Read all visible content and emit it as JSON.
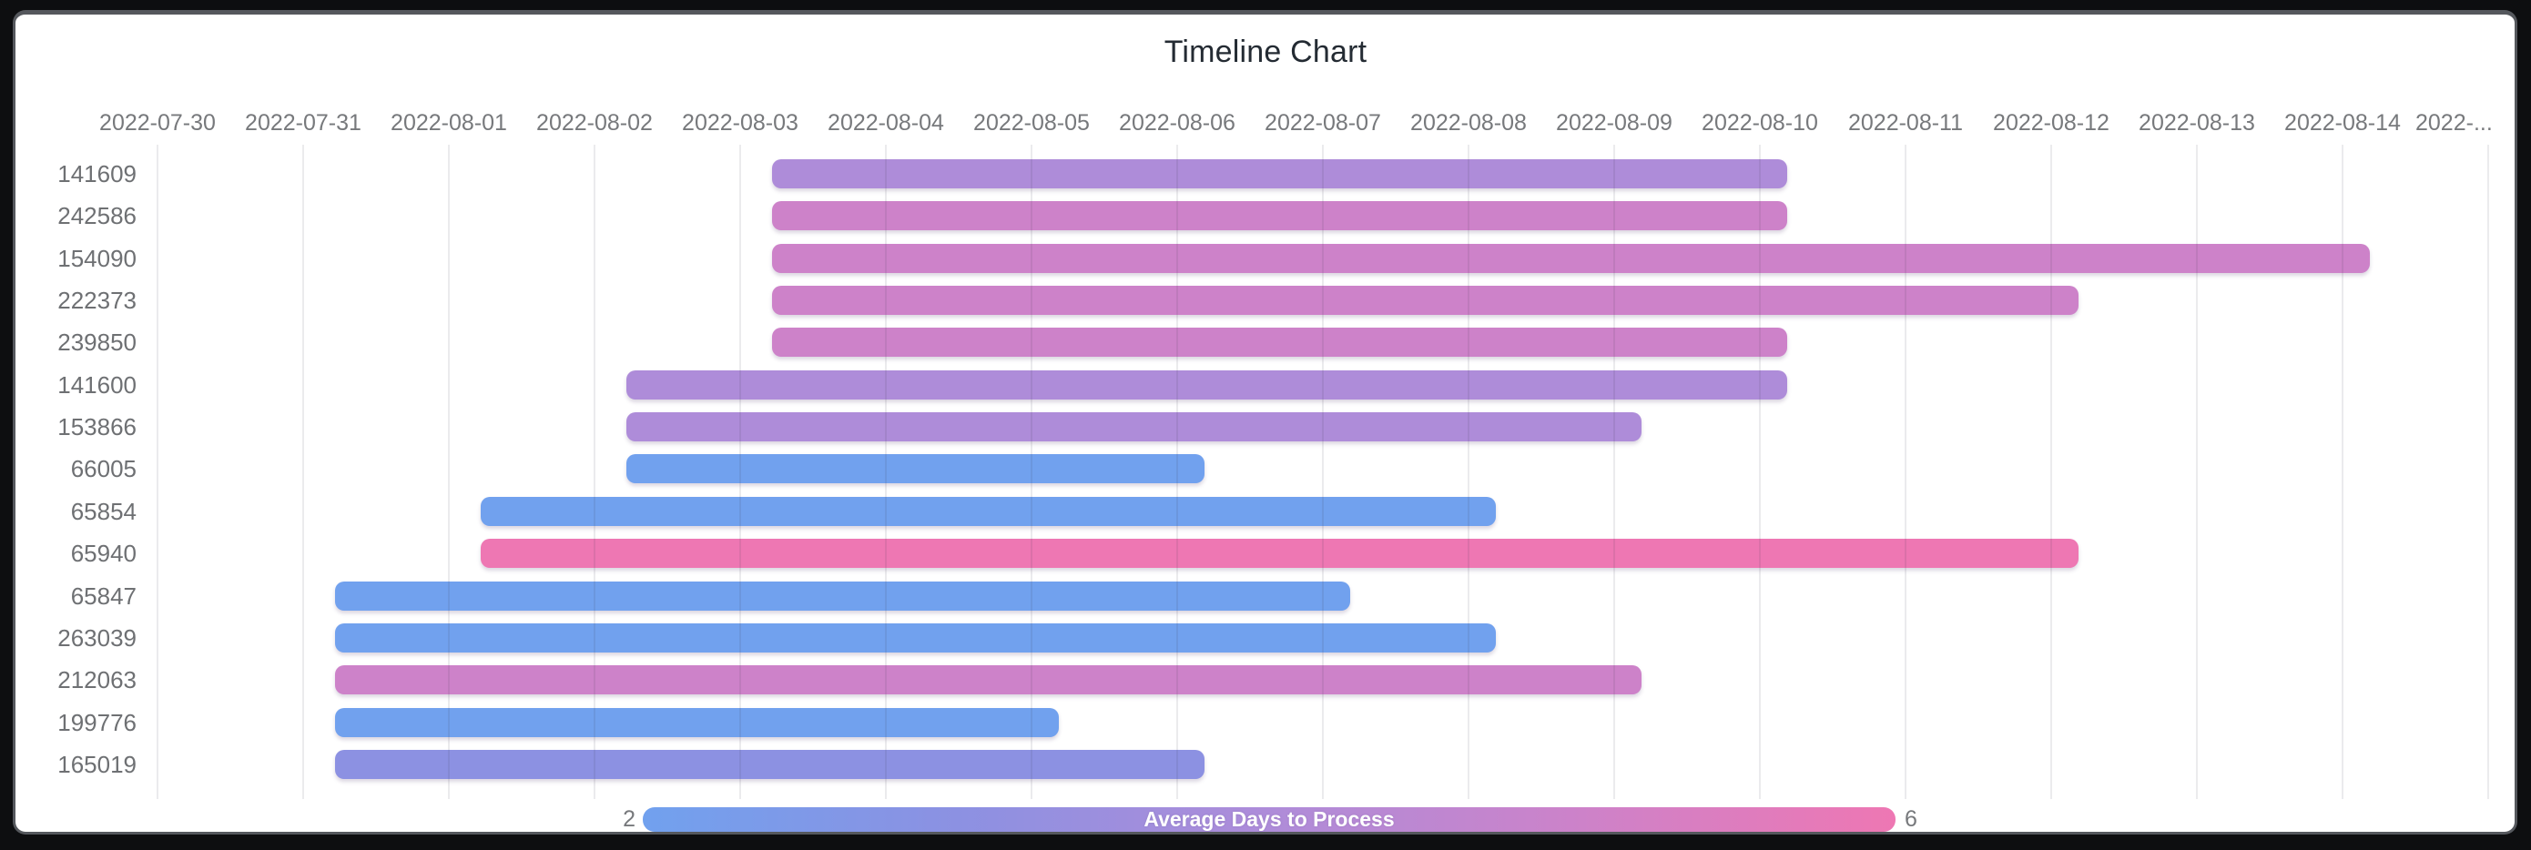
{
  "window": {
    "outer_background": "#0d0e10",
    "panel_background": "#ffffff",
    "panel_border_color": "#55585d"
  },
  "chart_data": {
    "type": "timeline",
    "title": "Timeline Chart",
    "x_axis": {
      "position": "top",
      "grid": true,
      "tick_labels": [
        "2022-07-30",
        "2022-07-31",
        "2022-08-01",
        "2022-08-02",
        "2022-08-03",
        "2022-08-04",
        "2022-08-05",
        "2022-08-06",
        "2022-08-07",
        "2022-08-08",
        "2022-08-09",
        "2022-08-10",
        "2022-08-11",
        "2022-08-12",
        "2022-08-13",
        "2022-08-14",
        "2022-..."
      ],
      "tick_dates": [
        "2022-07-30",
        "2022-07-31",
        "2022-08-01",
        "2022-08-02",
        "2022-08-03",
        "2022-08-04",
        "2022-08-05",
        "2022-08-06",
        "2022-08-07",
        "2022-08-08",
        "2022-08-09",
        "2022-08-10",
        "2022-08-11",
        "2022-08-12",
        "2022-08-13",
        "2022-08-14",
        "2022-08-15"
      ]
    },
    "rows": [
      {
        "id": "141609",
        "start": "2022-08-03",
        "end": "2022-08-10",
        "duration_days": 7,
        "color": "#ae8cd9"
      },
      {
        "id": "242586",
        "start": "2022-08-03",
        "end": "2022-08-10",
        "duration_days": 7,
        "color": "#cd82c9"
      },
      {
        "id": "154090",
        "start": "2022-08-03",
        "end": "2022-08-14",
        "duration_days": 11,
        "color": "#cd82c9"
      },
      {
        "id": "222373",
        "start": "2022-08-03",
        "end": "2022-08-12",
        "duration_days": 9,
        "color": "#cd82c9"
      },
      {
        "id": "239850",
        "start": "2022-08-03",
        "end": "2022-08-10",
        "duration_days": 7,
        "color": "#cd82c9"
      },
      {
        "id": "141600",
        "start": "2022-08-02",
        "end": "2022-08-10",
        "duration_days": 8,
        "color": "#ae8cd9"
      },
      {
        "id": "153866",
        "start": "2022-08-02",
        "end": "2022-08-09",
        "duration_days": 7,
        "color": "#ae8cd9"
      },
      {
        "id": "66005",
        "start": "2022-08-02",
        "end": "2022-08-06",
        "duration_days": 4,
        "color": "#71a1ee"
      },
      {
        "id": "65854",
        "start": "2022-08-01",
        "end": "2022-08-08",
        "duration_days": 7,
        "color": "#71a1ee"
      },
      {
        "id": "65940",
        "start": "2022-08-01",
        "end": "2022-08-12",
        "duration_days": 11,
        "color": "#ee77b3"
      },
      {
        "id": "65847",
        "start": "2022-07-31",
        "end": "2022-08-07",
        "duration_days": 7,
        "color": "#71a1ee"
      },
      {
        "id": "263039",
        "start": "2022-07-31",
        "end": "2022-08-08",
        "duration_days": 8,
        "color": "#71a1ee"
      },
      {
        "id": "212063",
        "start": "2022-07-31",
        "end": "2022-08-09",
        "duration_days": 9,
        "color": "#cd82c9"
      },
      {
        "id": "199776",
        "start": "2022-07-31",
        "end": "2022-08-05",
        "duration_days": 5,
        "color": "#71a1ee"
      },
      {
        "id": "165019",
        "start": "2022-07-31",
        "end": "2022-08-06",
        "duration_days": 6,
        "color": "#8c91e2"
      }
    ],
    "colorbar": {
      "label": "Average Days to Process",
      "min": 2,
      "max": 6,
      "position": "bottom",
      "gradient": [
        "#71a1ee",
        "#8c91e2",
        "#ae8cd9",
        "#cd82c9",
        "#ee77b3"
      ]
    }
  }
}
